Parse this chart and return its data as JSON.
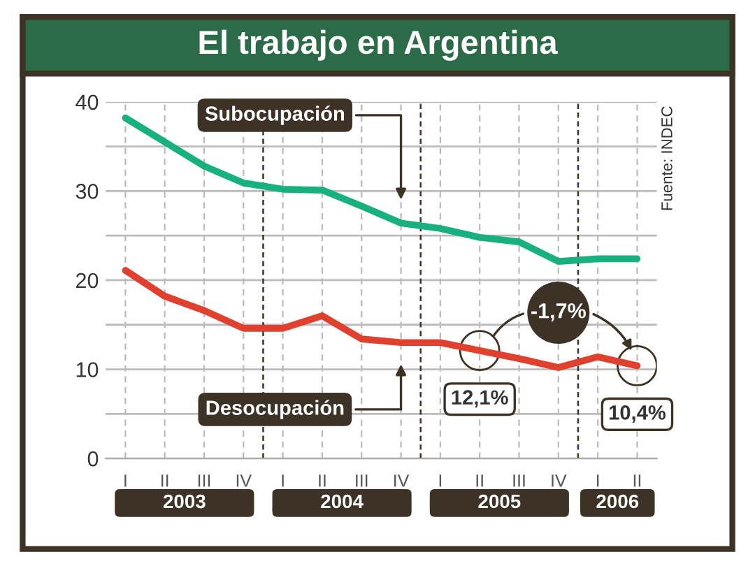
{
  "chart_data": {
    "type": "line",
    "title": "El trabajo en Argentina",
    "categories": [
      "I",
      "II",
      "III",
      "IV",
      "I",
      "II",
      "III",
      "IV",
      "I",
      "II",
      "III",
      "IV",
      "I",
      "II"
    ],
    "series": [
      {
        "name": "Subocupación",
        "color": "#18b07e",
        "values": [
          38.2,
          35.5,
          32.8,
          30.9,
          30.2,
          30.1,
          28.3,
          26.4,
          25.8,
          24.8,
          24.3,
          22.1,
          22.4,
          22.4
        ]
      },
      {
        "name": "Desocupación",
        "color": "#e0402e",
        "values": [
          21.1,
          18.2,
          16.6,
          14.6,
          14.6,
          16.0,
          13.4,
          13.0,
          13.0,
          12.1,
          11.2,
          10.2,
          11.4,
          10.4
        ],
        "value_labels": [
          null,
          null,
          null,
          null,
          null,
          null,
          null,
          null,
          null,
          "12,1%",
          null,
          null,
          null,
          "10,4%"
        ]
      }
    ],
    "ylim": [
      0,
      40
    ],
    "yticks": [
      0,
      {
        "value": 5,
        "label": null
      },
      10,
      {
        "value": 15,
        "label": null
      },
      20,
      {
        "value": 25,
        "label": null
      },
      30,
      {
        "value": 35,
        "label": null
      },
      40
    ],
    "grid": true,
    "legend": false,
    "marker": "none",
    "line_style": "solid",
    "annotations": [
      "2003",
      "2004",
      "2005",
      "2006",
      {
        "text": "-1,7%",
        "y": 10.4
      },
      "Fuente: INDEC"
    ]
  }
}
